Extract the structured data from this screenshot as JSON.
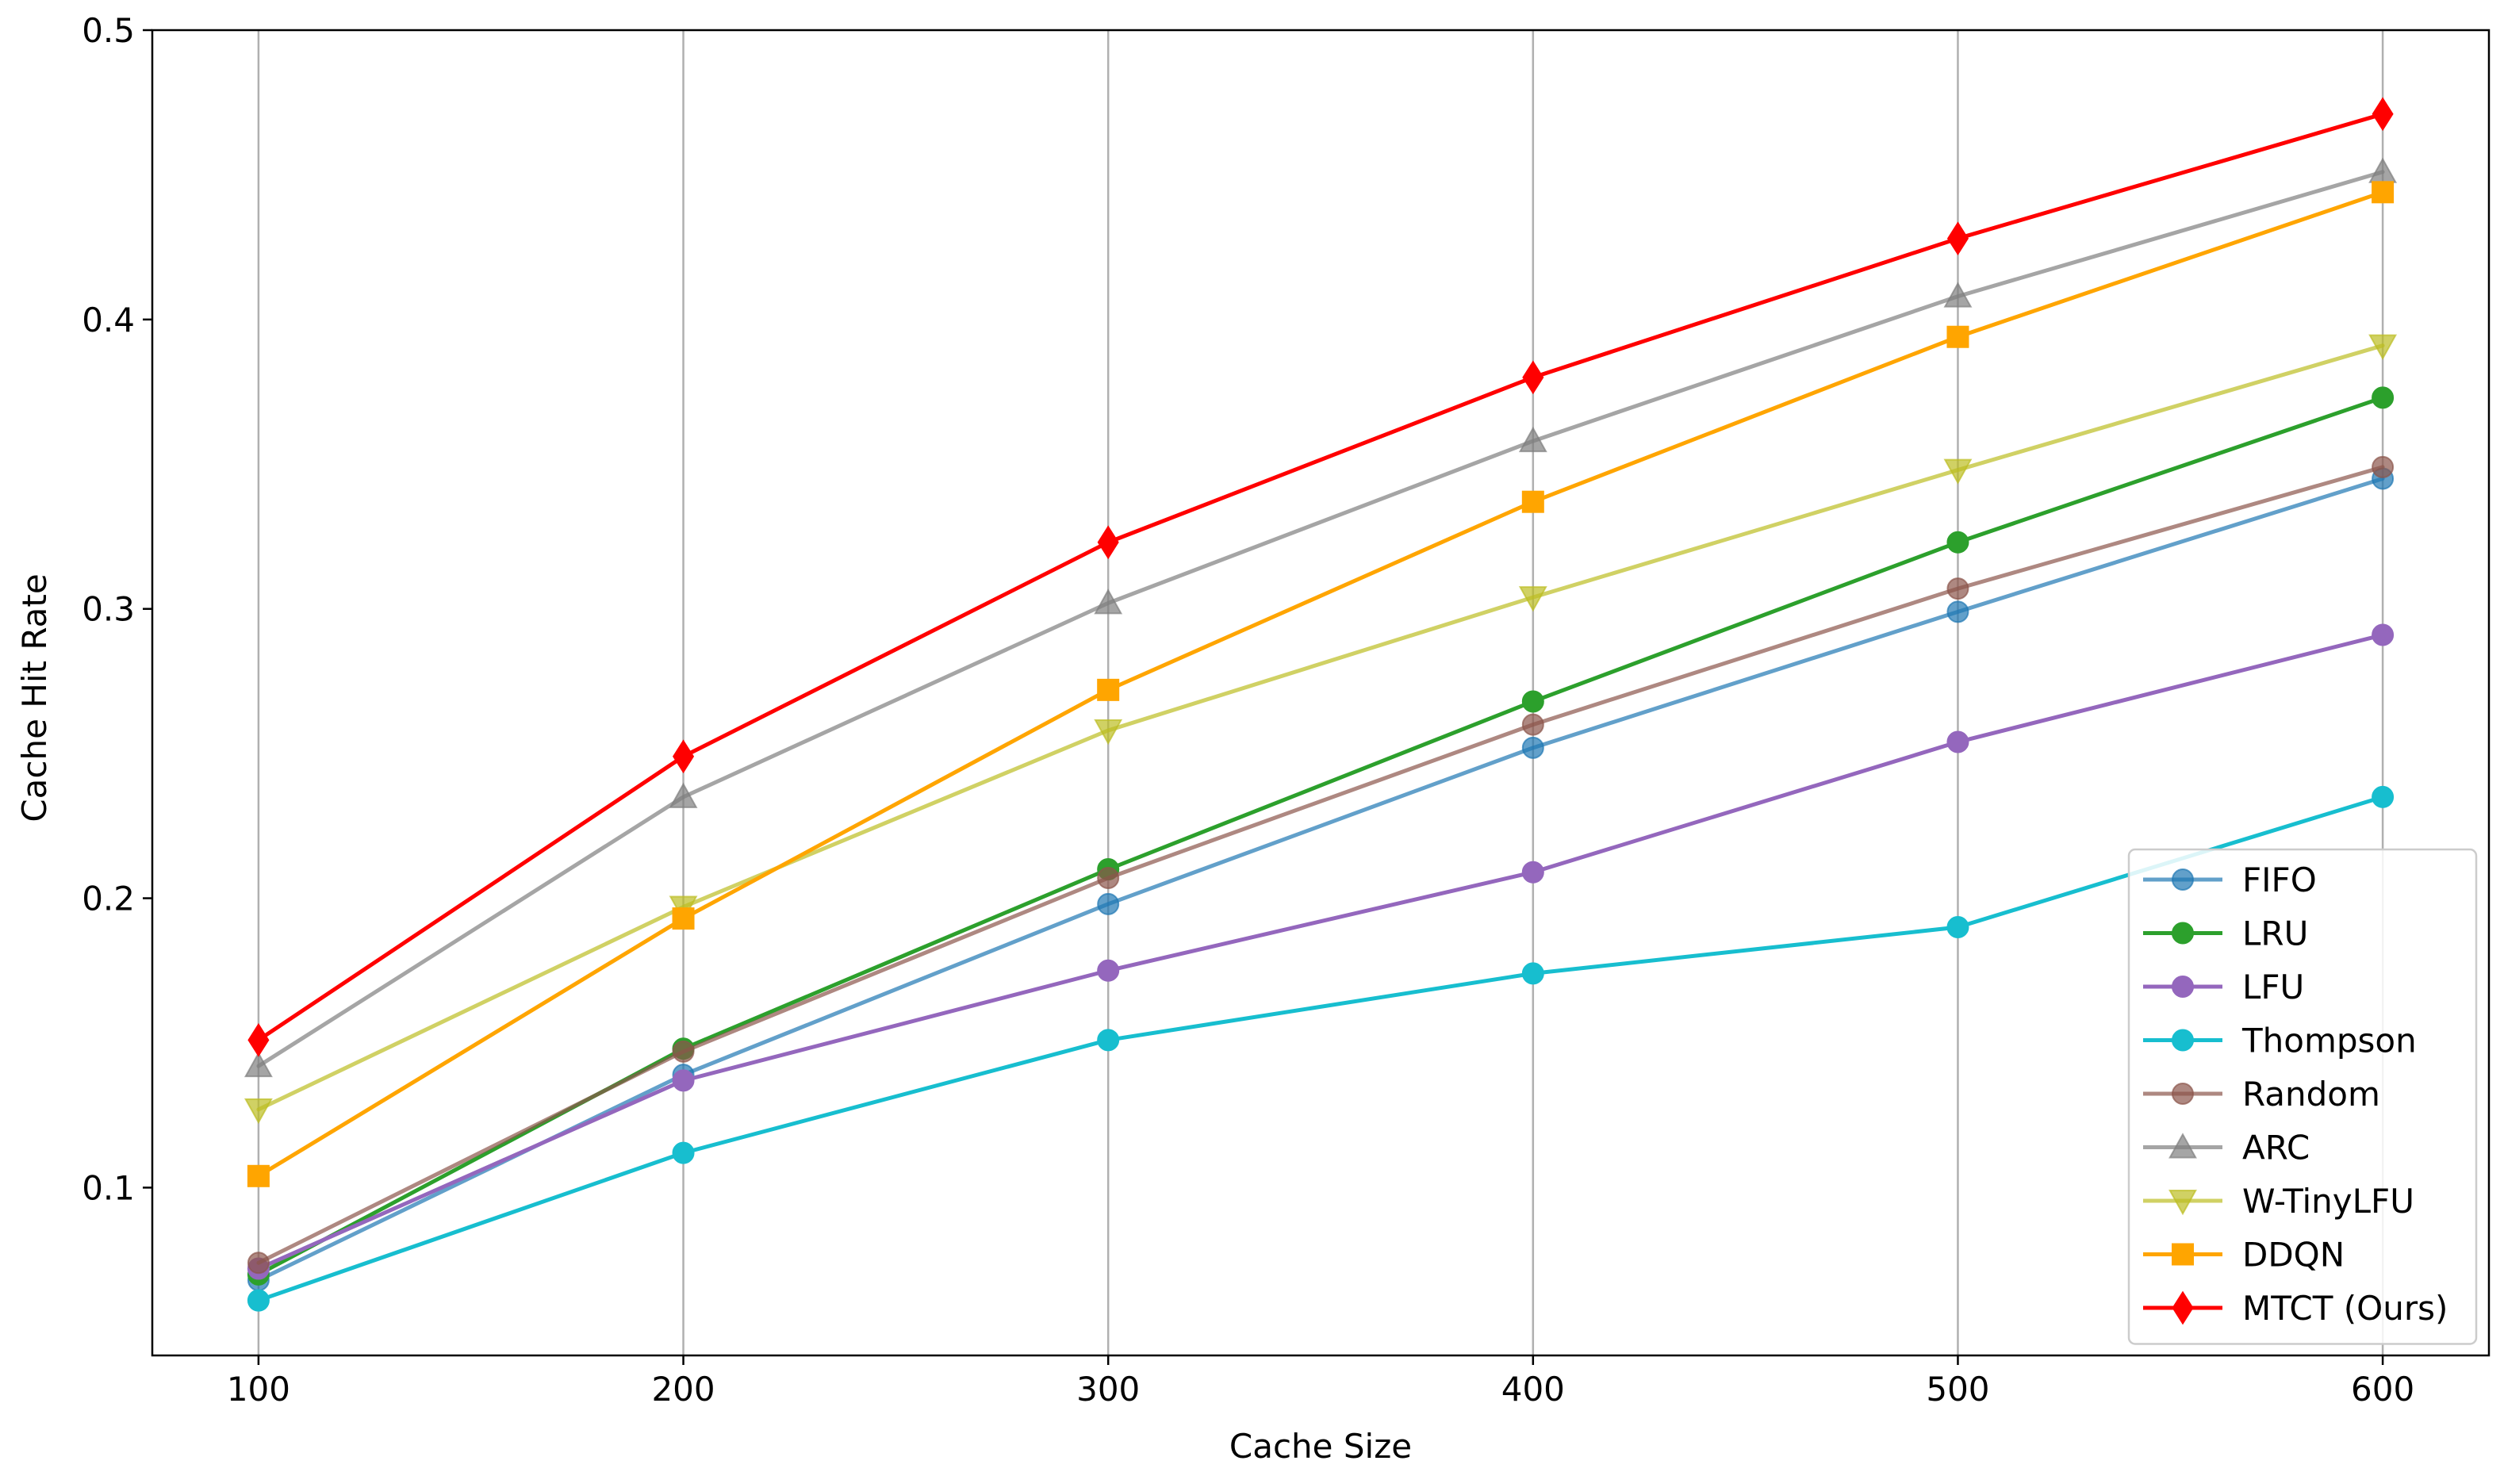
{
  "chart_data": {
    "type": "line",
    "xlabel": "Cache Size",
    "ylabel": "Cache Hit Rate",
    "x": [
      100,
      200,
      300,
      400,
      500,
      600
    ],
    "xlim": [
      75,
      625
    ],
    "ylim": [
      0.042,
      0.5
    ],
    "xticks": [
      "100",
      "200",
      "300",
      "400",
      "500",
      "600"
    ],
    "yticks": [
      {
        "value": 0.1,
        "label": "0.1"
      },
      {
        "value": 0.2,
        "label": "0.2"
      },
      {
        "value": 0.3,
        "label": "0.3"
      },
      {
        "value": 0.4,
        "label": "0.4"
      },
      {
        "value": 0.5,
        "label": "0.5"
      }
    ],
    "grid": "vertical",
    "legend": {
      "position": "lower-right"
    },
    "series": [
      {
        "name": "FIFO",
        "color": "#1f77b4",
        "marker": "circle",
        "alpha": 0.7,
        "values": [
          0.068,
          0.139,
          0.198,
          0.252,
          0.299,
          0.345
        ]
      },
      {
        "name": "LRU",
        "color": "#2ca02c",
        "marker": "circle",
        "alpha": 1.0,
        "values": [
          0.07,
          0.148,
          0.21,
          0.268,
          0.323,
          0.373
        ]
      },
      {
        "name": "LFU",
        "color": "#9467bd",
        "marker": "circle",
        "alpha": 1.0,
        "values": [
          0.072,
          0.137,
          0.175,
          0.209,
          0.254,
          0.291
        ]
      },
      {
        "name": "Thompson",
        "color": "#17becf",
        "marker": "circle",
        "alpha": 1.0,
        "values": [
          0.061,
          0.112,
          0.151,
          0.174,
          0.19,
          0.235
        ]
      },
      {
        "name": "Random",
        "color": "#8c564b",
        "marker": "circle",
        "alpha": 0.7,
        "values": [
          0.074,
          0.147,
          0.207,
          0.26,
          0.307,
          0.349
        ]
      },
      {
        "name": "ARC",
        "color": "#7f7f7f",
        "marker": "triangle-up",
        "alpha": 0.7,
        "values": [
          0.142,
          0.235,
          0.302,
          0.358,
          0.408,
          0.451
        ]
      },
      {
        "name": "W-TinyLFU",
        "color": "#bcbd22",
        "marker": "triangle-down",
        "alpha": 0.7,
        "values": [
          0.127,
          0.197,
          0.258,
          0.304,
          0.348,
          0.391
        ]
      },
      {
        "name": "DDQN",
        "color": "#ffa500",
        "marker": "square",
        "alpha": 1.0,
        "values": [
          0.104,
          0.193,
          0.272,
          0.337,
          0.394,
          0.444
        ]
      },
      {
        "name": "MTCT (Ours)",
        "color": "#ff0000",
        "marker": "diamond",
        "alpha": 1.0,
        "values": [
          0.151,
          0.249,
          0.323,
          0.38,
          0.428,
          0.471
        ]
      }
    ]
  }
}
